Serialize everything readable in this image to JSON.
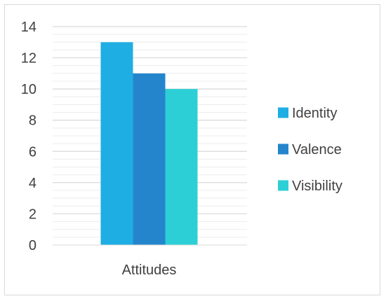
{
  "chart_data": {
    "type": "bar",
    "categories": [
      "Attitudes"
    ],
    "series": [
      {
        "name": "Identity",
        "values": [
          13
        ],
        "color": "#1faee3"
      },
      {
        "name": "Valence",
        "values": [
          11
        ],
        "color": "#2585cc"
      },
      {
        "name": "Visibility",
        "values": [
          10
        ],
        "color": "#2ccfd6"
      }
    ],
    "ylim": [
      0,
      14
    ],
    "y_ticks": [
      0,
      2,
      4,
      6,
      8,
      10,
      12,
      14
    ],
    "grid": true,
    "legend_position": "right",
    "title": "",
    "xlabel": "",
    "ylabel": ""
  }
}
